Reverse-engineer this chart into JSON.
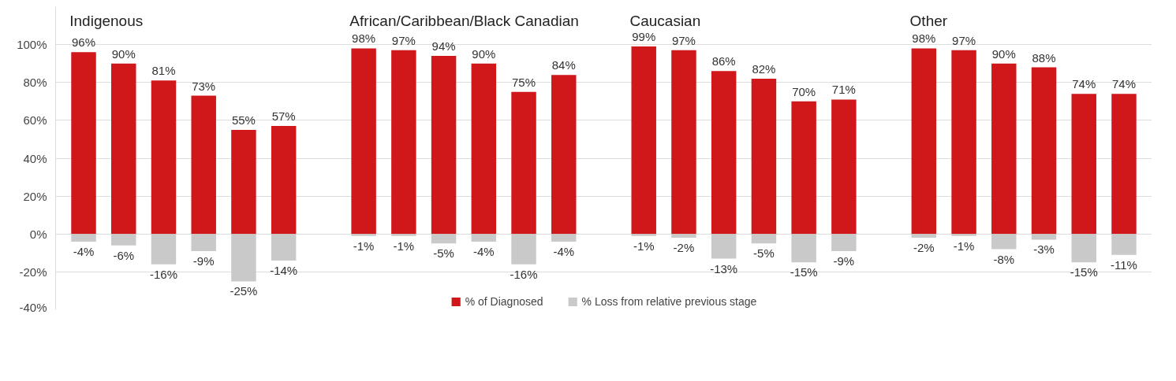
{
  "chart_data": {
    "type": "bar",
    "stacked": true,
    "categories": [
      null,
      null,
      null,
      null,
      null,
      null,
      null,
      null,
      null,
      null,
      null,
      null,
      null,
      null,
      null,
      null,
      null,
      null,
      null,
      null,
      null,
      null,
      null,
      null,
      null,
      null,
      null
    ],
    "series": [
      {
        "name": "% of Diagnosed",
        "color": "#d0171a",
        "values": [
          96,
          90,
          81,
          73,
          55,
          57,
          null,
          98,
          97,
          94,
          90,
          75,
          84,
          null,
          99,
          97,
          86,
          82,
          70,
          71,
          null,
          98,
          97,
          90,
          88,
          74,
          74
        ],
        "value_labels": [
          "96%",
          "90%",
          "81%",
          "73%",
          "55%",
          "57%",
          null,
          "98%",
          "97%",
          "94%",
          "90%",
          "75%",
          "84%",
          null,
          "99%",
          "97%",
          "86%",
          "82%",
          "70%",
          "71%",
          null,
          "98%",
          "97%",
          "90%",
          "88%",
          "74%",
          "74%"
        ]
      },
      {
        "name": "% Loss from relative previous stage",
        "color": "#c9c9c9",
        "values": [
          -4,
          -6,
          -16,
          -9,
          -25,
          -14,
          null,
          -1,
          -1,
          -5,
          -4,
          -16,
          -4,
          null,
          -1,
          -2,
          -13,
          -5,
          -15,
          -9,
          null,
          -2,
          -1,
          -8,
          -3,
          -15,
          -11
        ],
        "value_labels": [
          "-4%",
          "-6%",
          "-16%",
          "-9%",
          "-25%",
          "-14%",
          null,
          "-1%",
          "-1%",
          "-5%",
          "-4%",
          "-16%",
          "-4%",
          null,
          "-1%",
          "-2%",
          "-13%",
          "-5%",
          "-15%",
          "-9%",
          null,
          "-2%",
          "-1%",
          "-8%",
          "-3%",
          "-15%",
          "-11%"
        ]
      }
    ],
    "annotations": [
      "Indigenous",
      "African/Caribbean/Black Canadian",
      "Caucasian",
      "Other"
    ],
    "ylim": [
      -40,
      120
    ],
    "yticks": [
      {
        "value": -40,
        "label": "-40%"
      },
      {
        "value": -20,
        "label": "-20%"
      },
      {
        "value": 0,
        "label": "0%"
      },
      {
        "value": 20,
        "label": "20%"
      },
      {
        "value": 40,
        "label": "40%"
      },
      {
        "value": 60,
        "label": "60%"
      },
      {
        "value": 80,
        "label": "80%"
      },
      {
        "value": 100,
        "label": "100%"
      }
    ],
    "grid": "y",
    "legend": "bottom"
  }
}
